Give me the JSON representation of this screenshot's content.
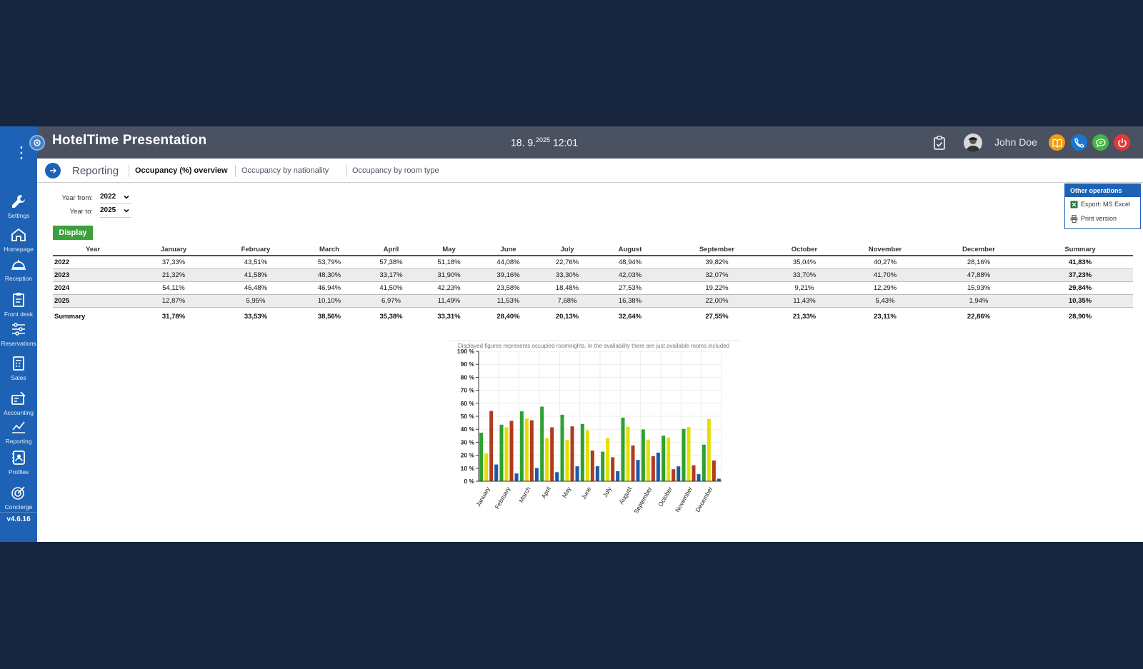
{
  "app": {
    "title": "HotelTime Presentation",
    "date_main": "18. 9.",
    "date_year": "2025",
    "time": "12:01",
    "user_name": "John Doe",
    "version": "v4.6.16"
  },
  "colors": {
    "bg": "#18253f",
    "sidebar": "#1d62b4",
    "topbar": "#4a5262",
    "green": "#3ca03c",
    "orange": "#f39c12",
    "blue_btn": "#1976d2",
    "chat_green": "#46b446",
    "power_red": "#e53935"
  },
  "sidebar": {
    "items": [
      {
        "label": "Settings",
        "icon": "wrench-icon"
      },
      {
        "label": "Homepage",
        "icon": "home-icon"
      },
      {
        "label": "Reception",
        "icon": "bell-icon"
      },
      {
        "label": "Front desk",
        "icon": "clipboard-icon"
      },
      {
        "label": "Reservations",
        "icon": "sliders-icon"
      },
      {
        "label": "Sales",
        "icon": "register-icon"
      },
      {
        "label": "Accounting",
        "icon": "calculator-icon"
      },
      {
        "label": "Reporting",
        "icon": "chart-icon"
      },
      {
        "label": "Profiles",
        "icon": "address-book-icon"
      },
      {
        "label": "Concierge",
        "icon": "target-icon"
      }
    ]
  },
  "section": {
    "title": "Reporting"
  },
  "tabs": [
    {
      "label": "Occupancy (%) overview",
      "active": true
    },
    {
      "label": "Occupancy by nationality",
      "active": false
    },
    {
      "label": "Occupancy by room type",
      "active": false
    }
  ],
  "filters": {
    "year_from_label": "Year from:",
    "year_from_value": "2022",
    "year_to_label": "Year to:",
    "year_to_value": "2025",
    "display_label": "Display"
  },
  "other_ops": {
    "title": "Other operations",
    "export_label": "Export: MS Excel",
    "print_label": "Print version"
  },
  "table": {
    "headers": [
      "Year",
      "January",
      "February",
      "March",
      "April",
      "May",
      "June",
      "July",
      "August",
      "September",
      "October",
      "November",
      "December",
      "Summary"
    ],
    "rows": [
      [
        "2022",
        "37,33%",
        "43,51%",
        "53,79%",
        "57,38%",
        "51,18%",
        "44,08%",
        "22,76%",
        "48,94%",
        "39,82%",
        "35,04%",
        "40,27%",
        "28,16%",
        "41,83%"
      ],
      [
        "2023",
        "21,32%",
        "41,58%",
        "48,30%",
        "33,17%",
        "31,90%",
        "39,16%",
        "33,30%",
        "42,03%",
        "32,07%",
        "33,70%",
        "41,70%",
        "47,88%",
        "37,23%"
      ],
      [
        "2024",
        "54,11%",
        "46,48%",
        "46,94%",
        "41,50%",
        "42,23%",
        "23,58%",
        "18,48%",
        "27,53%",
        "19,22%",
        "9,21%",
        "12,29%",
        "15,93%",
        "29,84%"
      ],
      [
        "2025",
        "12,87%",
        "5,95%",
        "10,10%",
        "6,97%",
        "11,49%",
        "11,53%",
        "7,68%",
        "16,38%",
        "22,00%",
        "11,43%",
        "5,43%",
        "1,94%",
        "10,35%"
      ]
    ],
    "summary": [
      "Summary",
      "31,78%",
      "33,53%",
      "38,56%",
      "35,38%",
      "33,31%",
      "28,40%",
      "20,13%",
      "32,64%",
      "27,55%",
      "21,33%",
      "23,11%",
      "22,86%",
      "28,90%"
    ]
  },
  "chart_note": "Displayed figures represents occupied roomnights. In the availability there are just available rooms included",
  "chart_data": {
    "type": "bar",
    "categories": [
      "January",
      "February",
      "March",
      "April",
      "May",
      "June",
      "July",
      "August",
      "September",
      "October",
      "November",
      "December"
    ],
    "series": [
      {
        "name": "2022",
        "color": "#2ea12e",
        "values": [
          37.33,
          43.51,
          53.79,
          57.38,
          51.18,
          44.08,
          22.76,
          48.94,
          39.82,
          35.04,
          40.27,
          28.16
        ]
      },
      {
        "name": "2023",
        "color": "#e3e000",
        "values": [
          21.32,
          41.58,
          48.3,
          33.17,
          31.9,
          39.16,
          33.3,
          42.03,
          32.07,
          33.7,
          41.7,
          47.88
        ]
      },
      {
        "name": "2024",
        "color": "#b23a1e",
        "values": [
          54.11,
          46.48,
          46.94,
          41.5,
          42.23,
          23.58,
          18.48,
          27.53,
          19.22,
          9.21,
          12.29,
          15.93
        ]
      },
      {
        "name": "2025",
        "color": "#1c5aa8",
        "values": [
          12.87,
          5.95,
          10.1,
          6.97,
          11.49,
          11.53,
          7.68,
          16.38,
          22.0,
          11.43,
          5.43,
          1.94
        ]
      }
    ],
    "yticks": [
      "0 %",
      "10 %",
      "20 %",
      "30 %",
      "40 %",
      "50 %",
      "60 %",
      "70 %",
      "80 %",
      "90 %",
      "100 %"
    ],
    "ylim": [
      0,
      100
    ],
    "grid": true
  }
}
